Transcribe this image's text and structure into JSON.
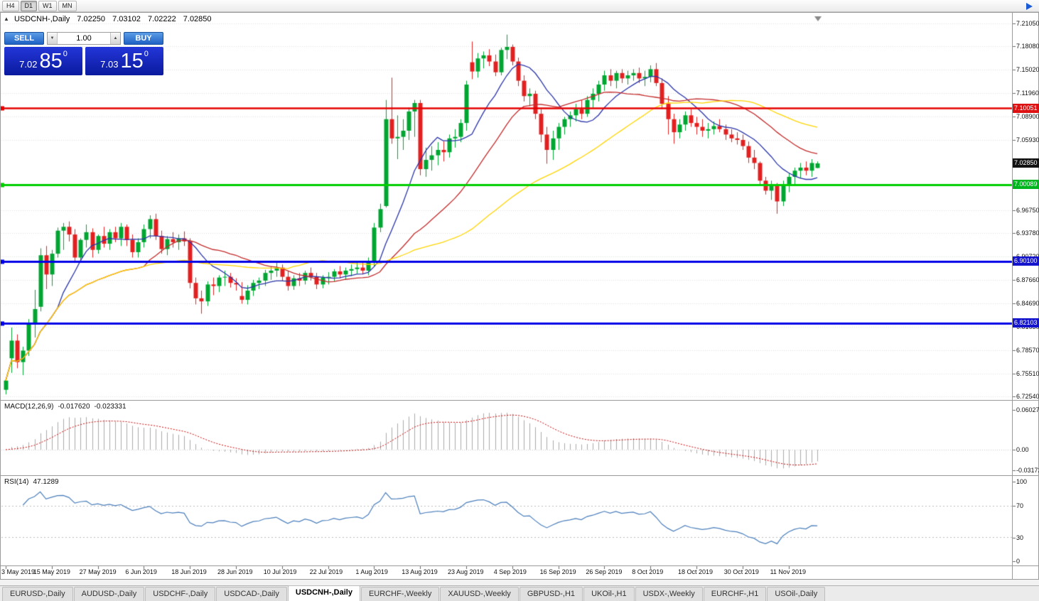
{
  "toolbar": {
    "timeframes": [
      "H4",
      "D1",
      "W1",
      "MN"
    ],
    "active_timeframe": "D1"
  },
  "window": {
    "toggle_icon": "▲",
    "symbol_label": "USDCNH-,Daily",
    "ohlc": {
      "open": "7.02250",
      "high": "7.03102",
      "low": "7.02222",
      "close": "7.02850"
    }
  },
  "trade_panel": {
    "sell_label": "SELL",
    "buy_label": "BUY",
    "lot_value": "1.00",
    "lot_down_icon": "▼",
    "lot_up_icon": "▲",
    "sell_price": {
      "main": "7.02",
      "pips": "85",
      "sub": "0"
    },
    "buy_price": {
      "main": "7.03",
      "pips": "15",
      "sub": "0"
    }
  },
  "macd_pane": {
    "title": "MACD(12,26,9)",
    "value": "-0.017620",
    "signal": "-0.023331",
    "axis": [
      "0.060273",
      "0.00",
      "-0.031725"
    ]
  },
  "rsi_pane": {
    "title": "RSI(14)",
    "value": "47.1289",
    "axis": [
      "100",
      "70",
      "30",
      "0"
    ]
  },
  "bottom_tabs": [
    {
      "label": "EURUSD-,Daily",
      "active": false
    },
    {
      "label": "AUDUSD-,Daily",
      "active": false
    },
    {
      "label": "USDCHF-,Daily",
      "active": false
    },
    {
      "label": "USDCAD-,Daily",
      "active": false
    },
    {
      "label": "USDCNH-,Daily",
      "active": true
    },
    {
      "label": "EURCHF-,Weekly",
      "active": false
    },
    {
      "label": "XAUUSD-,Weekly",
      "active": false
    },
    {
      "label": "GBPUSD-,H1",
      "active": false
    },
    {
      "label": "UKOil-,H1",
      "active": false
    },
    {
      "label": "USDX-,Weekly",
      "active": false
    },
    {
      "label": "EURCHF-,H1",
      "active": false
    },
    {
      "label": "USOil-,Daily",
      "active": false
    }
  ],
  "chart_data": {
    "type": "candlestick",
    "symbol": "USDCNH",
    "timeframe": "Daily",
    "price_range": {
      "top": 7.2105,
      "bottom": 6.7254
    },
    "y_axis_ticks": [
      "7.21050",
      "7.18080",
      "7.15020",
      "7.11960",
      "7.08900",
      "7.05930",
      "6.96750",
      "6.93780",
      "6.90720",
      "6.87660",
      "6.84690",
      "6.81630",
      "6.78570",
      "6.75510",
      "6.72540"
    ],
    "badges": [
      {
        "text": "7.10051",
        "price": 7.10051,
        "bg": "#DD1111"
      },
      {
        "text": "7.02850",
        "price": 7.0285,
        "bg": "#111111"
      },
      {
        "text": "7.00089",
        "price": 7.00089,
        "bg": "#00B41E"
      },
      {
        "text": "6.90100",
        "price": 6.901,
        "bg": "#1414CC"
      },
      {
        "text": "6.82103",
        "price": 6.82103,
        "bg": "#1414CC"
      }
    ],
    "hlines": [
      {
        "price": 7.10051,
        "color": "#E60000",
        "width": 2.4
      },
      {
        "price": 7.00089,
        "color": "#00CE00",
        "width": 3
      },
      {
        "price": 6.901,
        "color": "#0000E6",
        "width": 3
      },
      {
        "price": 6.82103,
        "color": "#0000E6",
        "width": 3
      }
    ],
    "current_price": 7.0285,
    "colors": {
      "up": "#00A532",
      "down": "#E32020",
      "grid": "#DDDDDD",
      "macd_hist": "#AAAAAA",
      "macd_signal": "#CC0000",
      "rsi": "#4A7EBB"
    },
    "moving_averages": [
      {
        "period": 10,
        "color": "#2A35A8"
      },
      {
        "period": 25,
        "color": "#C32B2B"
      },
      {
        "period": 50,
        "color": "#FFD400"
      }
    ],
    "macd": {
      "max": 0.060273,
      "min": -0.031725
    },
    "x_axis_labels": [
      {
        "text": "3 May 2019",
        "i": 0
      },
      {
        "text": "15 May 2019",
        "i": 8
      },
      {
        "text": "27 May 2019",
        "i": 16
      },
      {
        "text": "6 Jun 2019",
        "i": 24
      },
      {
        "text": "18 Jun 2019",
        "i": 32
      },
      {
        "text": "28 Jun 2019",
        "i": 40
      },
      {
        "text": "10 Jul 2019",
        "i": 48
      },
      {
        "text": "22 Jul 2019",
        "i": 56
      },
      {
        "text": "1 Aug 2019",
        "i": 64
      },
      {
        "text": "13 Aug 2019",
        "i": 72
      },
      {
        "text": "23 Aug 2019",
        "i": 80
      },
      {
        "text": "4 Sep 2019",
        "i": 88
      },
      {
        "text": "16 Sep 2019",
        "i": 96
      },
      {
        "text": "26 Sep 2019",
        "i": 104
      },
      {
        "text": "8 Oct 2019",
        "i": 112
      },
      {
        "text": "18 Oct 2019",
        "i": 120
      },
      {
        "text": "30 Oct 2019",
        "i": 128
      },
      {
        "text": "11 Nov 2019",
        "i": 136
      }
    ],
    "candles": [
      [
        6.734,
        6.748,
        6.728,
        6.746
      ],
      [
        6.775,
        6.815,
        6.756,
        6.798
      ],
      [
        6.798,
        6.806,
        6.762,
        6.77
      ],
      [
        6.77,
        6.79,
        6.753,
        6.785
      ],
      [
        6.785,
        6.826,
        6.778,
        6.819
      ],
      [
        6.819,
        6.864,
        6.802,
        6.839
      ],
      [
        6.842,
        6.918,
        6.836,
        6.909
      ],
      [
        6.909,
        6.921,
        6.865,
        6.884
      ],
      [
        6.884,
        6.916,
        6.869,
        6.911
      ],
      [
        6.911,
        6.945,
        6.906,
        6.941
      ],
      [
        6.941,
        6.951,
        6.916,
        6.946
      ],
      [
        6.946,
        6.953,
        6.927,
        6.936
      ],
      [
        6.936,
        6.943,
        6.899,
        6.906
      ],
      [
        6.906,
        6.931,
        6.902,
        6.929
      ],
      [
        6.929,
        6.949,
        6.919,
        6.939
      ],
      [
        6.939,
        6.944,
        6.906,
        6.916
      ],
      [
        6.916,
        6.936,
        6.911,
        6.934
      ],
      [
        6.934,
        6.946,
        6.919,
        6.924
      ],
      [
        6.924,
        6.943,
        6.916,
        6.939
      ],
      [
        6.939,
        6.946,
        6.926,
        6.931
      ],
      [
        6.931,
        6.951,
        6.921,
        6.946
      ],
      [
        6.946,
        6.949,
        6.921,
        6.929
      ],
      [
        6.929,
        6.936,
        6.906,
        6.913
      ],
      [
        6.913,
        6.931,
        6.906,
        6.926
      ],
      [
        6.926,
        6.949,
        6.919,
        6.943
      ],
      [
        6.943,
        6.961,
        6.931,
        6.956
      ],
      [
        6.956,
        6.963,
        6.929,
        6.934
      ],
      [
        6.934,
        6.941,
        6.911,
        6.917
      ],
      [
        6.917,
        6.934,
        6.909,
        6.93
      ],
      [
        6.93,
        6.939,
        6.919,
        6.926
      ],
      [
        6.926,
        6.936,
        6.916,
        6.931
      ],
      [
        6.931,
        6.94,
        6.921,
        6.927
      ],
      [
        6.927,
        6.931,
        6.866,
        6.873
      ],
      [
        6.873,
        6.88,
        6.845,
        6.853
      ],
      [
        6.853,
        6.863,
        6.833,
        6.849
      ],
      [
        6.849,
        6.875,
        6.843,
        6.871
      ],
      [
        6.871,
        6.88,
        6.857,
        6.869
      ],
      [
        6.869,
        6.883,
        6.861,
        6.88
      ],
      [
        6.88,
        6.889,
        6.869,
        6.881
      ],
      [
        6.881,
        6.886,
        6.867,
        6.873
      ],
      [
        6.873,
        6.879,
        6.863,
        6.871
      ],
      [
        6.856,
        6.874,
        6.846,
        6.851
      ],
      [
        6.851,
        6.87,
        6.845,
        6.863
      ],
      [
        6.863,
        6.877,
        6.856,
        6.873
      ],
      [
        6.873,
        6.88,
        6.865,
        6.876
      ],
      [
        6.876,
        6.89,
        6.869,
        6.886
      ],
      [
        6.886,
        6.895,
        6.877,
        6.889
      ],
      [
        6.889,
        6.899,
        6.881,
        6.893
      ],
      [
        6.893,
        6.897,
        6.876,
        6.881
      ],
      [
        6.881,
        6.888,
        6.863,
        6.869
      ],
      [
        6.869,
        6.883,
        6.864,
        6.879
      ],
      [
        6.879,
        6.886,
        6.869,
        6.876
      ],
      [
        6.876,
        6.889,
        6.871,
        6.886
      ],
      [
        6.886,
        6.893,
        6.876,
        6.881
      ],
      [
        6.881,
        6.886,
        6.865,
        6.871
      ],
      [
        6.871,
        6.883,
        6.866,
        6.88
      ],
      [
        6.88,
        6.887,
        6.871,
        6.881
      ],
      [
        6.881,
        6.891,
        6.875,
        6.888
      ],
      [
        6.888,
        6.895,
        6.879,
        6.884
      ],
      [
        6.884,
        6.893,
        6.877,
        6.889
      ],
      [
        6.889,
        6.897,
        6.882,
        6.891
      ],
      [
        6.891,
        6.9,
        6.885,
        6.893
      ],
      [
        6.893,
        6.901,
        6.884,
        6.889
      ],
      [
        6.889,
        6.906,
        6.883,
        6.901
      ],
      [
        6.901,
        6.951,
        6.894,
        6.945
      ],
      [
        6.945,
        6.976,
        6.939,
        6.969
      ],
      [
        6.973,
        7.111,
        6.971,
        7.086
      ],
      [
        7.086,
        7.14,
        7.054,
        7.061
      ],
      [
        7.061,
        7.091,
        7.034,
        7.063
      ],
      [
        7.063,
        7.086,
        7.046,
        7.071
      ],
      [
        7.071,
        7.101,
        7.059,
        7.096
      ],
      [
        7.096,
        7.111,
        7.063,
        7.107
      ],
      [
        7.107,
        7.111,
        7.013,
        7.021
      ],
      [
        7.021,
        7.049,
        7.011,
        7.033
      ],
      [
        7.033,
        7.051,
        7.019,
        7.039
      ],
      [
        7.039,
        7.056,
        7.026,
        7.046
      ],
      [
        7.046,
        7.057,
        7.031,
        7.043
      ],
      [
        7.043,
        7.066,
        7.036,
        7.061
      ],
      [
        7.061,
        7.073,
        7.049,
        7.063
      ],
      [
        7.063,
        7.086,
        7.056,
        7.081
      ],
      [
        7.081,
        7.136,
        7.071,
        7.131
      ],
      [
        7.16,
        7.187,
        7.138,
        7.148
      ],
      [
        7.148,
        7.172,
        7.14,
        7.165
      ],
      [
        7.165,
        7.174,
        7.152,
        7.169
      ],
      [
        7.169,
        7.177,
        7.155,
        7.161
      ],
      [
        7.161,
        7.17,
        7.142,
        7.147
      ],
      [
        7.147,
        7.179,
        7.143,
        7.176
      ],
      [
        7.176,
        7.196,
        7.164,
        7.18
      ],
      [
        7.18,
        7.183,
        7.156,
        7.161
      ],
      [
        7.161,
        7.166,
        7.129,
        7.136
      ],
      [
        7.136,
        7.143,
        7.109,
        7.116
      ],
      [
        7.116,
        7.126,
        7.103,
        7.119
      ],
      [
        7.119,
        7.123,
        7.086,
        7.093
      ],
      [
        7.093,
        7.099,
        7.056,
        7.066
      ],
      [
        7.066,
        7.076,
        7.028,
        7.046
      ],
      [
        7.046,
        7.071,
        7.033,
        7.061
      ],
      [
        7.061,
        7.081,
        7.046,
        7.076
      ],
      [
        7.076,
        7.089,
        7.066,
        7.086
      ],
      [
        7.086,
        7.096,
        7.076,
        7.091
      ],
      [
        7.091,
        7.106,
        7.083,
        7.099
      ],
      [
        7.099,
        7.111,
        7.086,
        7.093
      ],
      [
        7.093,
        7.116,
        7.089,
        7.111
      ],
      [
        7.111,
        7.126,
        7.101,
        7.119
      ],
      [
        7.119,
        7.136,
        7.109,
        7.131
      ],
      [
        7.131,
        7.149,
        7.123,
        7.143
      ],
      [
        7.143,
        7.151,
        7.129,
        7.136
      ],
      [
        7.136,
        7.149,
        7.126,
        7.146
      ],
      [
        7.146,
        7.151,
        7.133,
        7.139
      ],
      [
        7.139,
        7.149,
        7.131,
        7.143
      ],
      [
        7.143,
        7.151,
        7.136,
        7.146
      ],
      [
        7.146,
        7.153,
        7.133,
        7.139
      ],
      [
        7.139,
        7.149,
        7.129,
        7.141
      ],
      [
        7.141,
        7.156,
        7.134,
        7.151
      ],
      [
        7.151,
        7.159,
        7.129,
        7.133
      ],
      [
        7.133,
        7.139,
        7.099,
        7.106
      ],
      [
        7.106,
        7.116,
        7.066,
        7.086
      ],
      [
        7.086,
        7.093,
        7.054,
        7.069
      ],
      [
        7.069,
        7.086,
        7.061,
        7.079
      ],
      [
        7.079,
        7.096,
        7.071,
        7.091
      ],
      [
        7.091,
        7.099,
        7.076,
        7.081
      ],
      [
        7.081,
        7.089,
        7.066,
        7.076
      ],
      [
        7.076,
        7.086,
        7.063,
        7.071
      ],
      [
        7.071,
        7.081,
        7.061,
        7.073
      ],
      [
        7.073,
        7.083,
        7.066,
        7.077
      ],
      [
        7.077,
        7.086,
        7.069,
        7.073
      ],
      [
        7.073,
        7.079,
        7.059,
        7.066
      ],
      [
        7.066,
        7.073,
        7.056,
        7.061
      ],
      [
        7.061,
        7.069,
        7.053,
        7.059
      ],
      [
        7.059,
        7.066,
        7.046,
        7.051
      ],
      [
        7.051,
        7.057,
        7.029,
        7.036
      ],
      [
        7.036,
        7.046,
        7.021,
        7.029
      ],
      [
        7.029,
        7.031,
        6.999,
        7.006
      ],
      [
        7.006,
        7.011,
        6.988,
        6.993
      ],
      [
        6.993,
        7.006,
        6.981,
        6.999
      ],
      [
        6.999,
        7.003,
        6.963,
        6.979
      ],
      [
        6.979,
        7.006,
        6.973,
        6.999
      ],
      [
        6.999,
        7.016,
        6.991,
        7.011
      ],
      [
        7.011,
        7.023,
        7.001,
        7.019
      ],
      [
        7.019,
        7.029,
        7.009,
        7.023
      ],
      [
        7.023,
        7.031,
        7.013,
        7.019
      ],
      [
        7.019,
        7.034,
        7.011,
        7.029
      ],
      [
        7.0225,
        7.031,
        7.0222,
        7.0285
      ]
    ]
  }
}
